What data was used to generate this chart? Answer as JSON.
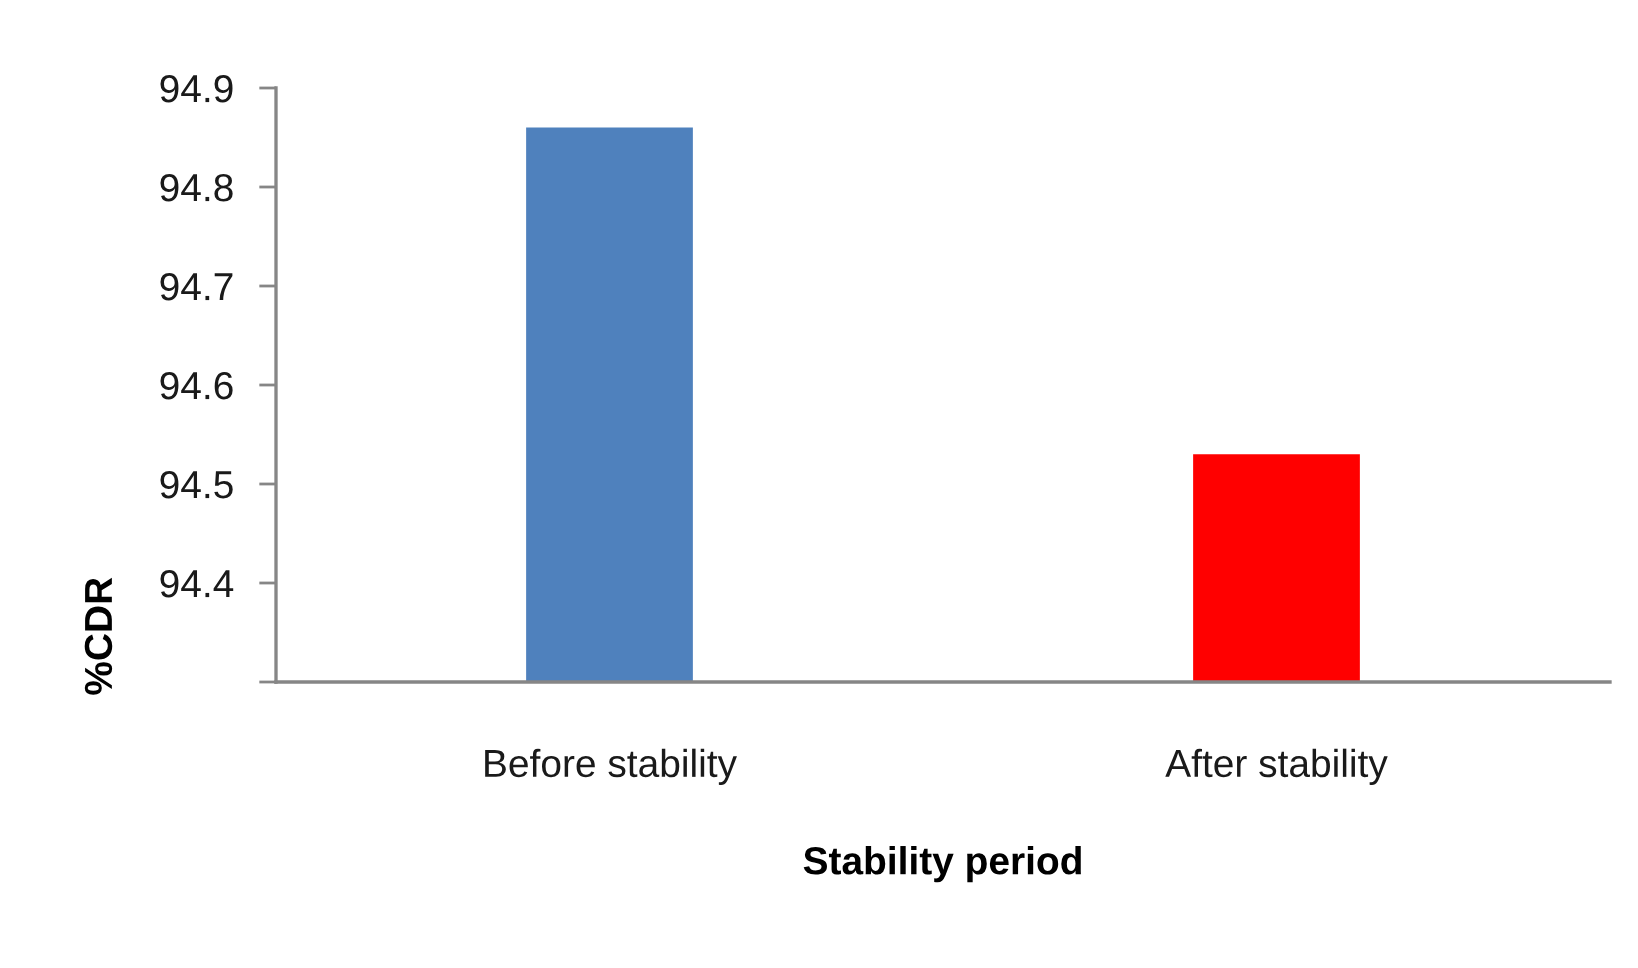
{
  "chart_data": {
    "type": "bar",
    "xlabel": "Stability period",
    "ylabel": "%CDR",
    "categories": [
      "Before stability",
      "After stability"
    ],
    "values": [
      94.86,
      94.53
    ],
    "colors": [
      "#4f81bd",
      "#ff0000"
    ],
    "ylim": [
      94.3,
      94.9
    ],
    "yticks": [
      {
        "value": 94.3,
        "label": null
      },
      94.4,
      94.5,
      94.6,
      94.7,
      94.8,
      94.9
    ]
  }
}
